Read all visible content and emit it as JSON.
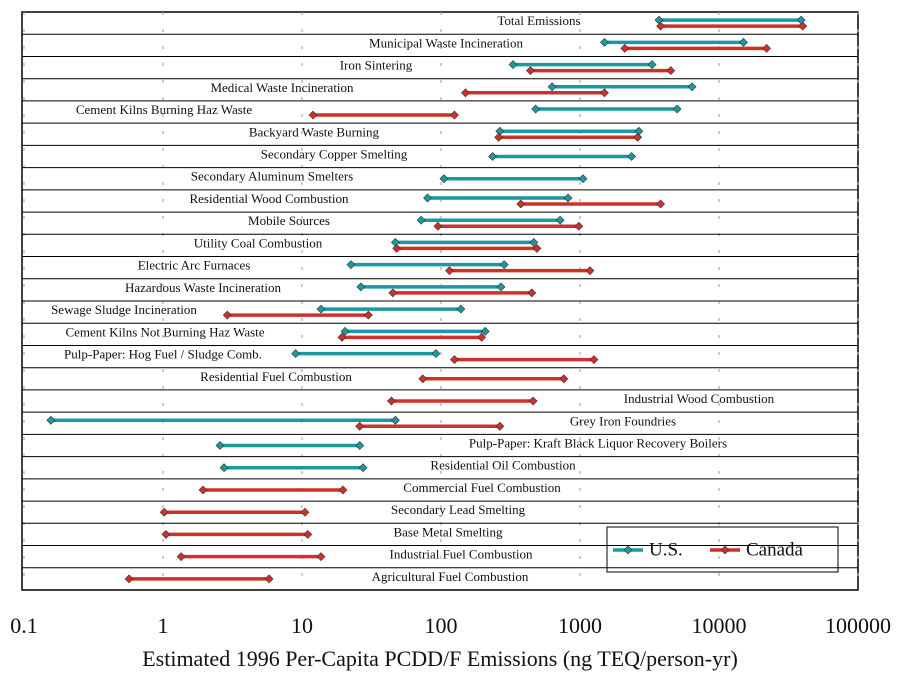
{
  "chart_data": {
    "type": "range",
    "x_label": "Estimated 1996 Per-Capita PCDD/F Emissions (ng TEQ/person-yr)",
    "log_x": true,
    "xlim": [
      0.1,
      100000
    ],
    "xticks": [
      0.1,
      1,
      10,
      100,
      1000,
      10000,
      100000
    ],
    "grid": true,
    "legend": "bottom-right",
    "categories": [
      "Total Emissions",
      "Municipal Waste Incineration",
      "Iron Sintering",
      "Medical Waste Incineration",
      "Cement Kilns Burning Haz Waste",
      "Backyard Waste Burning",
      "Secondary Copper Smelting",
      "Secondary Aluminum Smelters",
      "Residential Wood Combustion",
      "Mobile Sources",
      "Utility Coal Combustion",
      "Electric Arc Furnaces",
      "Hazardous Waste Incineration",
      "Sewage Sludge Incineration",
      "Cement Kilns Not Burning Haz Waste",
      "Pulp-Paper: Hog Fuel / Sludge Comb.",
      "Residential Fuel Combustion",
      "Industrial Wood Combustion",
      "Grey Iron Foundries",
      "Pulp-Paper: Kraft Black Liquor Recovery Boilers",
      "Residential Oil Combustion",
      "Commercial Fuel Combustion",
      "Secondary Lead Smelting",
      "Base Metal Smelting",
      "Industrial Fuel Combustion",
      "Agricultural Fuel Combustion"
    ],
    "series": [
      {
        "name": "U.S.",
        "color": "#1a9aa0",
        "low": [
          3700,
          1500,
          330,
          630,
          480,
          265,
          235,
          105,
          80,
          72,
          47,
          22.5,
          26.5,
          13.7,
          20.4,
          9,
          null,
          null,
          0.156,
          2.57,
          2.75,
          null,
          null,
          null,
          null,
          null
        ],
        "high": [
          39000,
          15000,
          3300,
          6400,
          5000,
          2650,
          2350,
          1050,
          820,
          720,
          465,
          285,
          270,
          139,
          208,
          92,
          null,
          null,
          47,
          26,
          27.5,
          null,
          null,
          null,
          null,
          null
        ]
      },
      {
        "name": "Canada",
        "color": "#d0302a",
        "low": [
          3800,
          2100,
          440,
          150,
          12,
          260,
          null,
          null,
          375,
          95,
          48,
          115,
          45,
          2.9,
          19.4,
          125,
          74,
          44,
          26,
          null,
          null,
          1.94,
          1.02,
          1.05,
          1.35,
          0.57
        ],
        "high": [
          40000,
          22000,
          4500,
          1500,
          125,
          2600,
          null,
          null,
          3800,
          980,
          490,
          1180,
          450,
          30,
          196,
          1260,
          765,
          460,
          265,
          null,
          null,
          19.7,
          10.5,
          11,
          13.7,
          5.8
        ]
      }
    ]
  }
}
